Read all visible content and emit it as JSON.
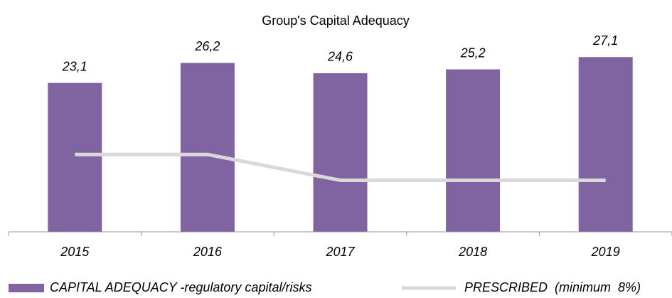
{
  "chart_data": {
    "type": "bar",
    "title": "Group's Capital Adequacy",
    "categories": [
      "2015",
      "2016",
      "2017",
      "2018",
      "2019"
    ],
    "series": [
      {
        "name": "CAPITAL ADEQUACY -regulatory capital/risks",
        "type": "bar",
        "color": "#8064a2",
        "values": [
          23.1,
          26.2,
          24.6,
          25.2,
          27.1
        ],
        "value_labels": [
          "23,1",
          "26,2",
          "24,6",
          "25,2",
          "27,1"
        ]
      },
      {
        "name": "PRESCRIBED  (minimum  8%)",
        "type": "line",
        "color": "#d9d9d9",
        "values": [
          12,
          12,
          8,
          8,
          8
        ]
      }
    ],
    "ylim": [
      0,
      30
    ],
    "legend": "bottom"
  }
}
